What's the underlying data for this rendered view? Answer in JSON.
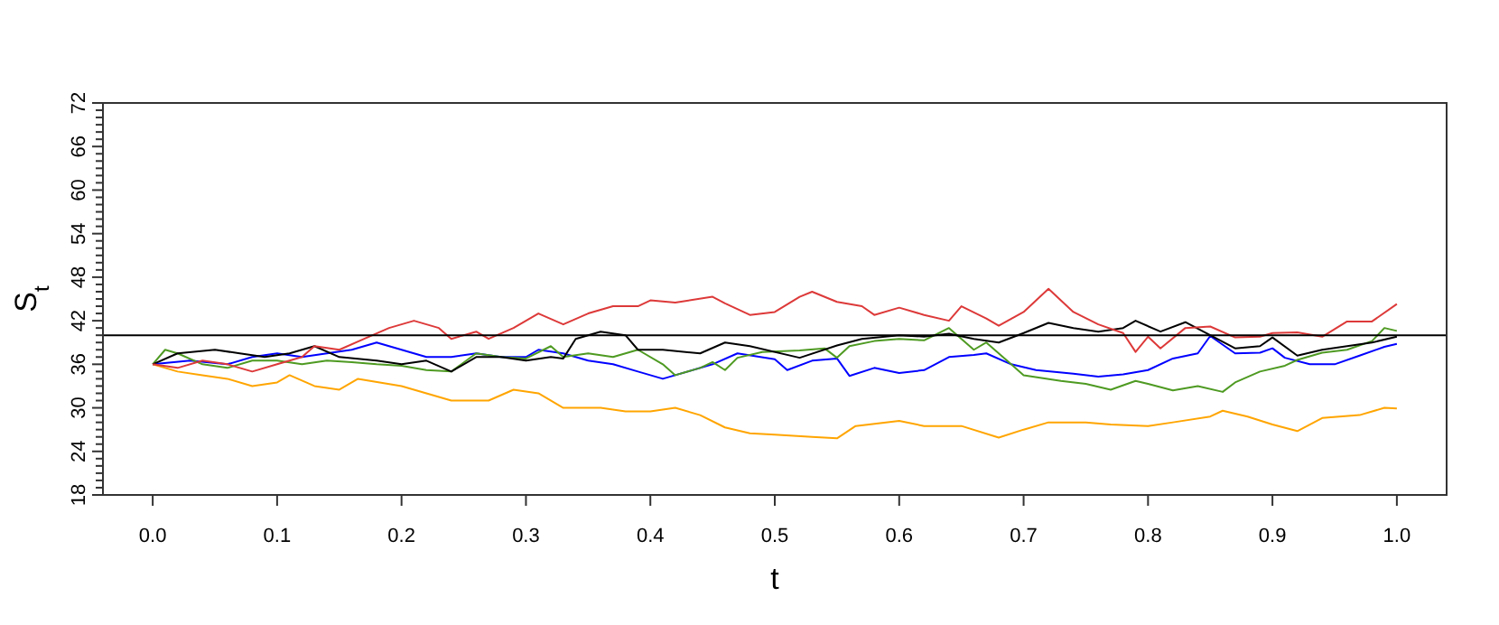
{
  "chart_data": {
    "type": "line",
    "xlabel": "t",
    "ylabel": "S$_{t}$",
    "xlim": [
      -0.04,
      1.04
    ],
    "xticks": [
      {
        "value": 0,
        "label": "0.0"
      },
      {
        "value": 0.1,
        "label": "0.1"
      },
      {
        "value": 0.2,
        "label": "0.2"
      },
      {
        "value": 0.3,
        "label": "0.3"
      },
      {
        "value": 0.4,
        "label": "0.4"
      },
      {
        "value": 0.5,
        "label": "0.5"
      },
      {
        "value": 0.6,
        "label": "0.6"
      },
      {
        "value": 0.7,
        "label": "0.7"
      },
      {
        "value": 0.8,
        "label": "0.8"
      },
      {
        "value": 0.9,
        "label": "0.9"
      },
      {
        "value": 1,
        "label": "1.0"
      }
    ],
    "ylim": [
      18,
      72
    ],
    "yticks": [
      18,
      {
        "value": 19,
        "label": null
      },
      {
        "value": 20,
        "label": null
      },
      {
        "value": 21,
        "label": null
      },
      {
        "value": 22,
        "label": null
      },
      {
        "value": 23,
        "label": null
      },
      24,
      {
        "value": 25,
        "label": null
      },
      {
        "value": 26,
        "label": null
      },
      {
        "value": 27,
        "label": null
      },
      {
        "value": 28,
        "label": null
      },
      {
        "value": 29,
        "label": null
      },
      30,
      {
        "value": 31,
        "label": null
      },
      {
        "value": 32,
        "label": null
      },
      {
        "value": 33,
        "label": null
      },
      {
        "value": 34,
        "label": null
      },
      {
        "value": 35,
        "label": null
      },
      36,
      {
        "value": 37,
        "label": null
      },
      {
        "value": 38,
        "label": null
      },
      {
        "value": 39,
        "label": null
      },
      {
        "value": 40,
        "label": null
      },
      {
        "value": 41,
        "label": null
      },
      42,
      {
        "value": 43,
        "label": null
      },
      {
        "value": 44,
        "label": null
      },
      {
        "value": 45,
        "label": null
      },
      {
        "value": 46,
        "label": null
      },
      {
        "value": 47,
        "label": null
      },
      48,
      {
        "value": 49,
        "label": null
      },
      {
        "value": 50,
        "label": null
      },
      {
        "value": 51,
        "label": null
      },
      {
        "value": 52,
        "label": null
      },
      {
        "value": 53,
        "label": null
      },
      54,
      {
        "value": 55,
        "label": null
      },
      {
        "value": 56,
        "label": null
      },
      {
        "value": 57,
        "label": null
      },
      {
        "value": 58,
        "label": null
      },
      {
        "value": 59,
        "label": null
      },
      60,
      {
        "value": 61,
        "label": null
      },
      {
        "value": 62,
        "label": null
      },
      {
        "value": 63,
        "label": null
      },
      {
        "value": 64,
        "label": null
      },
      {
        "value": 65,
        "label": null
      },
      66,
      {
        "value": 67,
        "label": null
      },
      {
        "value": 68,
        "label": null
      },
      {
        "value": 69,
        "label": null
      },
      {
        "value": 70,
        "label": null
      },
      {
        "value": 71,
        "label": null
      },
      72
    ],
    "ref_lines": [
      {
        "axis": "y",
        "value": 40,
        "color": "#000000"
      }
    ],
    "grid": false,
    "series": [
      {
        "color": "#ffa500",
        "x": [
          0,
          0.02,
          0.04,
          0.06,
          0.08,
          0.1,
          0.11,
          0.13,
          0.15,
          0.165,
          0.2,
          0.22,
          0.24,
          0.27,
          0.29,
          0.31,
          0.33,
          0.36,
          0.38,
          0.4,
          0.42,
          0.44,
          0.46,
          0.48,
          0.5,
          0.53,
          0.55,
          0.565,
          0.6,
          0.62,
          0.65,
          0.68,
          0.7,
          0.72,
          0.75,
          0.77,
          0.8,
          0.82,
          0.85,
          0.86,
          0.88,
          0.9,
          0.92,
          0.94,
          0.97,
          0.99,
          1
        ],
        "values": [
          36,
          35,
          34.5,
          34,
          33,
          33.5,
          34.5,
          33,
          32.5,
          34,
          33,
          32,
          31,
          31,
          32.5,
          32,
          30,
          30,
          29.5,
          29.5,
          30,
          29,
          27.3,
          26.5,
          26.3,
          26,
          25.8,
          27.5,
          28.2,
          27.5,
          27.5,
          25.9,
          27,
          28,
          28,
          27.7,
          27.5,
          28,
          28.8,
          29.6,
          28.8,
          27.7,
          26.8,
          28.6,
          29,
          30,
          29.9
        ]
      },
      {
        "color": "#0000ff",
        "x": [
          0,
          0.03,
          0.06,
          0.08,
          0.1,
          0.12,
          0.14,
          0.16,
          0.18,
          0.2,
          0.22,
          0.24,
          0.26,
          0.28,
          0.3,
          0.31,
          0.33,
          0.35,
          0.37,
          0.39,
          0.41,
          0.43,
          0.45,
          0.47,
          0.5,
          0.51,
          0.53,
          0.55,
          0.56,
          0.58,
          0.6,
          0.62,
          0.64,
          0.66,
          0.67,
          0.69,
          0.71,
          0.74,
          0.76,
          0.78,
          0.8,
          0.82,
          0.84,
          0.85,
          0.87,
          0.89,
          0.9,
          0.91,
          0.93,
          0.95,
          0.97,
          0.99,
          1
        ],
        "values": [
          36,
          36.5,
          36,
          37,
          37.5,
          37,
          37.5,
          38,
          39,
          38,
          37,
          37,
          37.5,
          37,
          37,
          38,
          37.5,
          36.5,
          36,
          35,
          34,
          35,
          36,
          37.5,
          36.7,
          35.2,
          36.5,
          36.8,
          34.4,
          35.5,
          34.8,
          35.2,
          37,
          37.3,
          37.5,
          36,
          35.2,
          34.7,
          34.3,
          34.6,
          35.2,
          36.8,
          37.5,
          39.9,
          37.5,
          37.6,
          38.2,
          36.9,
          36,
          36,
          37.2,
          38.4,
          38.8
        ]
      },
      {
        "color": "#4e9a22",
        "x": [
          0,
          0.01,
          0.02,
          0.04,
          0.06,
          0.08,
          0.1,
          0.12,
          0.14,
          0.16,
          0.18,
          0.2,
          0.22,
          0.24,
          0.26,
          0.28,
          0.3,
          0.32,
          0.33,
          0.35,
          0.37,
          0.39,
          0.41,
          0.42,
          0.44,
          0.45,
          0.46,
          0.47,
          0.49,
          0.52,
          0.54,
          0.55,
          0.56,
          0.58,
          0.6,
          0.62,
          0.64,
          0.66,
          0.67,
          0.69,
          0.7,
          0.73,
          0.75,
          0.77,
          0.79,
          0.8,
          0.82,
          0.84,
          0.86,
          0.87,
          0.89,
          0.91,
          0.92,
          0.94,
          0.96,
          0.98,
          0.99,
          1
        ],
        "values": [
          36,
          38,
          37.5,
          36,
          35.5,
          36.5,
          36.5,
          36,
          36.5,
          36.3,
          36,
          35.8,
          35.2,
          35,
          37.5,
          37,
          36.8,
          38.5,
          37,
          37.5,
          37,
          38,
          36,
          34.5,
          35.5,
          36.3,
          35.2,
          36.9,
          37.7,
          37.9,
          38.2,
          36.9,
          38.5,
          39.2,
          39.5,
          39.3,
          41,
          38,
          39,
          36,
          34.5,
          33.7,
          33.3,
          32.5,
          33.7,
          33.3,
          32.4,
          33,
          32.2,
          33.5,
          35,
          35.8,
          36.6,
          37.6,
          38,
          39.2,
          41,
          40.6
        ]
      },
      {
        "color": "#000000",
        "x": [
          0,
          0.02,
          0.05,
          0.07,
          0.09,
          0.11,
          0.13,
          0.15,
          0.18,
          0.2,
          0.22,
          0.24,
          0.26,
          0.28,
          0.3,
          0.32,
          0.33,
          0.34,
          0.36,
          0.38,
          0.39,
          0.41,
          0.44,
          0.46,
          0.48,
          0.52,
          0.55,
          0.57,
          0.6,
          0.62,
          0.64,
          0.66,
          0.68,
          0.7,
          0.72,
          0.74,
          0.76,
          0.78,
          0.79,
          0.81,
          0.83,
          0.85,
          0.87,
          0.89,
          0.9,
          0.92,
          0.94,
          0.96,
          0.98,
          1
        ],
        "values": [
          36,
          37.5,
          38,
          37.5,
          37,
          37.5,
          38.5,
          37,
          36.5,
          36,
          36.5,
          35,
          37,
          37,
          36.5,
          37,
          36.8,
          39.5,
          40.5,
          40,
          38,
          38,
          37.5,
          39,
          38.5,
          36.9,
          38.6,
          39.5,
          40,
          39.8,
          40.2,
          39.5,
          39,
          40.3,
          41.7,
          41,
          40.5,
          41,
          42,
          40.5,
          41.8,
          40,
          38.2,
          38.5,
          39.7,
          37.2,
          38,
          38.5,
          39,
          39.8
        ]
      },
      {
        "color": "#dd3939",
        "x": [
          0,
          0.02,
          0.04,
          0.06,
          0.08,
          0.1,
          0.12,
          0.13,
          0.15,
          0.17,
          0.19,
          0.21,
          0.23,
          0.24,
          0.26,
          0.27,
          0.29,
          0.31,
          0.33,
          0.35,
          0.37,
          0.39,
          0.4,
          0.42,
          0.45,
          0.46,
          0.48,
          0.5,
          0.52,
          0.53,
          0.55,
          0.57,
          0.58,
          0.6,
          0.62,
          0.64,
          0.65,
          0.67,
          0.68,
          0.7,
          0.72,
          0.74,
          0.76,
          0.78,
          0.79,
          0.8,
          0.81,
          0.83,
          0.85,
          0.87,
          0.89,
          0.9,
          0.92,
          0.94,
          0.96,
          0.98,
          1
        ],
        "values": [
          36,
          35.5,
          36.5,
          36,
          35,
          36,
          37,
          38.5,
          38,
          39.5,
          41,
          42,
          41,
          39.5,
          40.5,
          39.5,
          41,
          43,
          41.5,
          43,
          44,
          44,
          44.8,
          44.5,
          45.3,
          44.4,
          42.8,
          43.2,
          45.3,
          46,
          44.6,
          44,
          42.8,
          43.8,
          42.8,
          42,
          44,
          42.3,
          41.3,
          43.2,
          46.4,
          43.2,
          41.5,
          40.3,
          37.7,
          39.8,
          38.2,
          41,
          41.2,
          39.7,
          39.8,
          40.3,
          40.4,
          39.8,
          41.9,
          41.9,
          44.3
        ]
      }
    ]
  }
}
